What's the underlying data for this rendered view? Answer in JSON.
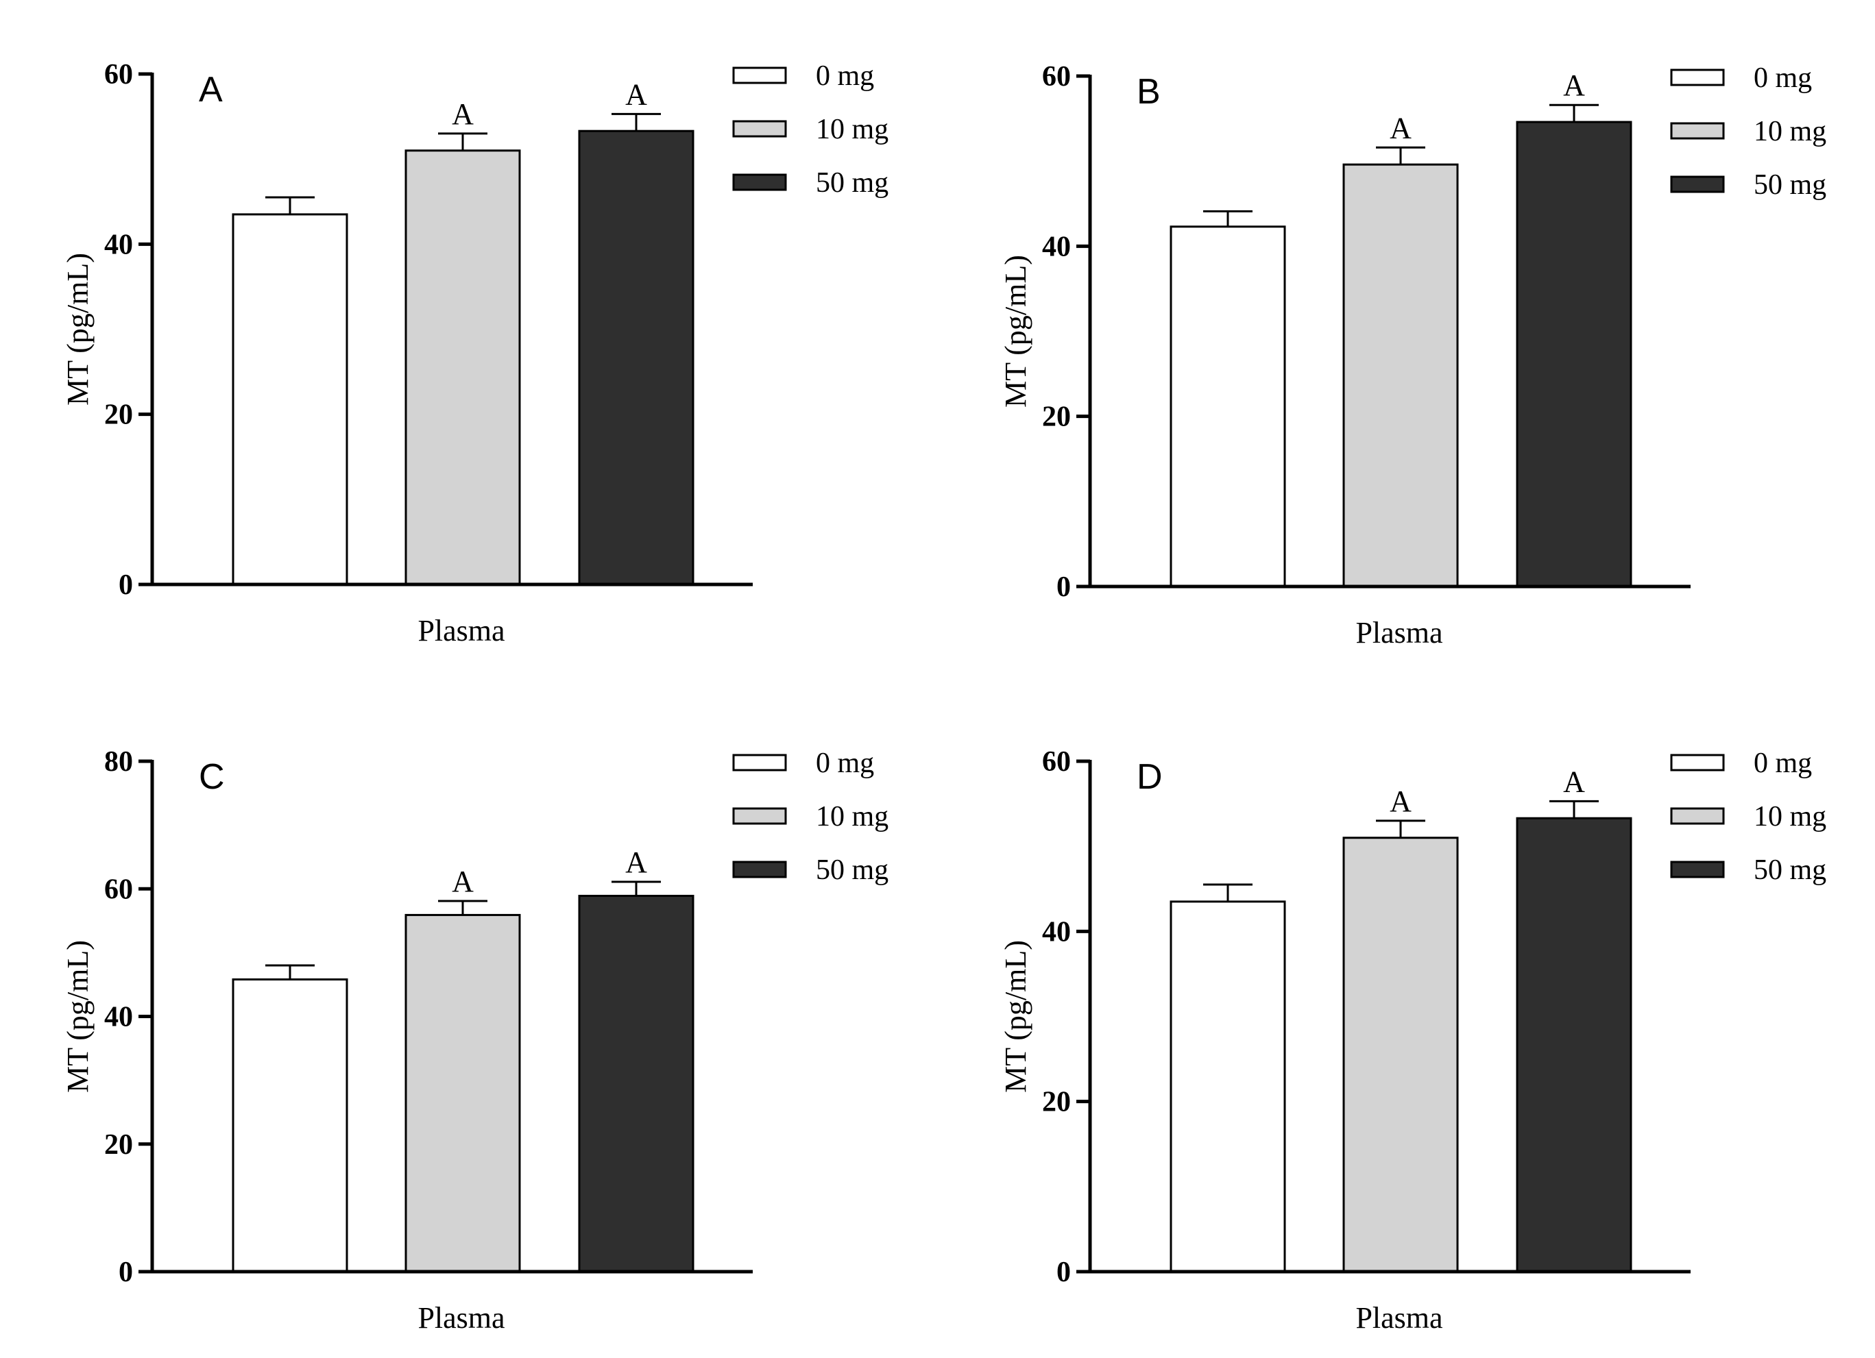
{
  "chart_data": [
    {
      "type": "bar",
      "panel": "A",
      "categories": [
        "Plasma"
      ],
      "xlabel": "Plasma",
      "ylabel": "MT (pg/mL)",
      "ylim": [
        0,
        60
      ],
      "yticks": [
        0,
        20,
        40,
        60
      ],
      "series": [
        {
          "name": "0 mg",
          "values": [
            43.5
          ],
          "error": [
            2.0
          ],
          "sig": "",
          "color": "#ffffff"
        },
        {
          "name": "10 mg",
          "values": [
            51.0
          ],
          "error": [
            2.0
          ],
          "sig": "A",
          "color": "#d3d3d3"
        },
        {
          "name": "50 mg",
          "values": [
            53.3
          ],
          "error": [
            2.0
          ],
          "sig": "A",
          "color": "#2f2f2f"
        }
      ],
      "legend": "top-right",
      "grid": false
    },
    {
      "type": "bar",
      "panel": "B",
      "categories": [
        "Plasma"
      ],
      "xlabel": "Plasma",
      "ylabel": "MT (pg/mL)",
      "ylim": [
        0,
        60
      ],
      "yticks": [
        0,
        20,
        40,
        60
      ],
      "series": [
        {
          "name": "0 mg",
          "values": [
            42.3
          ],
          "error": [
            1.8
          ],
          "sig": "",
          "color": "#ffffff"
        },
        {
          "name": "10 mg",
          "values": [
            49.6
          ],
          "error": [
            2.0
          ],
          "sig": "A",
          "color": "#d3d3d3"
        },
        {
          "name": "50 mg",
          "values": [
            54.6
          ],
          "error": [
            2.0
          ],
          "sig": "A",
          "color": "#2f2f2f"
        }
      ],
      "legend": "top-right",
      "grid": false
    },
    {
      "type": "bar",
      "panel": "C",
      "categories": [
        "Plasma"
      ],
      "xlabel": "Plasma",
      "ylabel": "MT (pg/mL)",
      "ylim": [
        0,
        80
      ],
      "yticks": [
        0,
        20,
        40,
        60,
        80
      ],
      "series": [
        {
          "name": "0 mg",
          "values": [
            45.8
          ],
          "error": [
            2.2
          ],
          "sig": "",
          "color": "#ffffff"
        },
        {
          "name": "10 mg",
          "values": [
            55.9
          ],
          "error": [
            2.2
          ],
          "sig": "A",
          "color": "#d3d3d3"
        },
        {
          "name": "50 mg",
          "values": [
            58.9
          ],
          "error": [
            2.2
          ],
          "sig": "A",
          "color": "#2f2f2f"
        }
      ],
      "legend": "top-right",
      "grid": false
    },
    {
      "type": "bar",
      "panel": "D",
      "categories": [
        "Plasma"
      ],
      "xlabel": "Plasma",
      "ylabel": "MT (pg/mL)",
      "ylim": [
        0,
        60
      ],
      "yticks": [
        0,
        20,
        40,
        60
      ],
      "series": [
        {
          "name": "0 mg",
          "values": [
            43.5
          ],
          "error": [
            2.0
          ],
          "sig": "",
          "color": "#ffffff"
        },
        {
          "name": "10 mg",
          "values": [
            51.0
          ],
          "error": [
            2.0
          ],
          "sig": "A",
          "color": "#d3d3d3"
        },
        {
          "name": "50 mg",
          "values": [
            53.3
          ],
          "error": [
            2.0
          ],
          "sig": "A",
          "color": "#2f2f2f"
        }
      ],
      "legend": "top-right",
      "grid": false
    }
  ]
}
